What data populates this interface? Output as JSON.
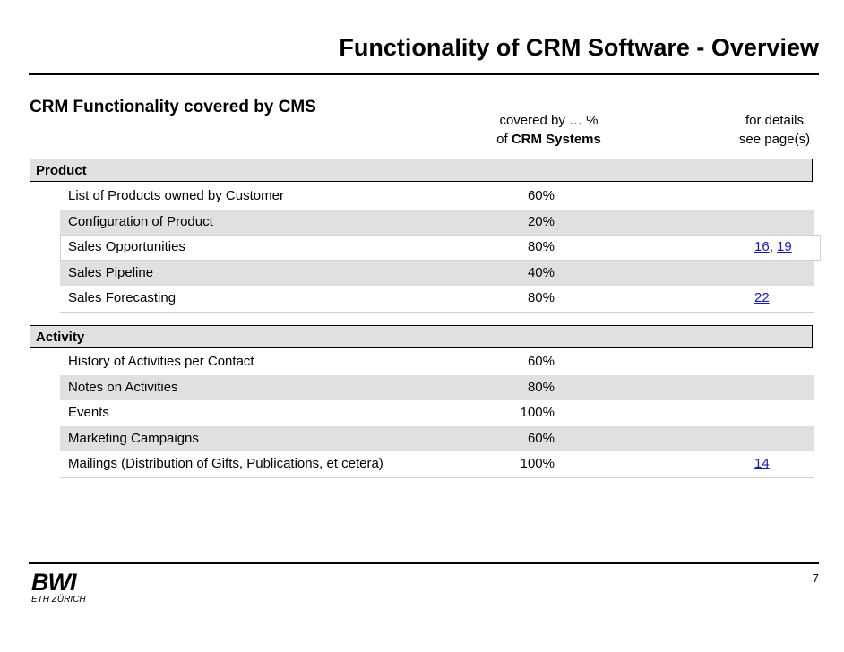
{
  "title": "Functionality of CRM Software - Overview",
  "subtitle": "CRM Functionality covered by CMS",
  "columns": {
    "percent_line1": "covered by … %",
    "percent_line2_prefix": "of ",
    "percent_line2_bold": "CRM Systems",
    "details_line1": "for details",
    "details_line2": "see page(s)"
  },
  "sections": [
    {
      "header": "Product",
      "rows": [
        {
          "label": "List of Products owned by Customer",
          "percent": "60%"
        },
        {
          "label": "Configuration of Product",
          "percent": "20%"
        },
        {
          "label": "Sales Opportunities",
          "percent": "80%",
          "link1": "16",
          "separator": ", ",
          "link2": "19"
        },
        {
          "label": "Sales Pipeline",
          "percent": "40%"
        },
        {
          "label": "Sales Forecasting",
          "percent": "80%",
          "link1": "22"
        }
      ]
    },
    {
      "header": "Activity",
      "rows": [
        {
          "label": "History of Activities per Contact",
          "percent": "60%"
        },
        {
          "label": "Notes on Activities",
          "percent": "80%"
        },
        {
          "label": "Events",
          "percent": "100%"
        },
        {
          "label": "Marketing Campaigns",
          "percent": "60%"
        },
        {
          "label": "Mailings (Distribution of Gifts, Publications, et cetera)",
          "percent": "100%",
          "link1": "14"
        }
      ]
    }
  ],
  "footer": {
    "logo_text": "BWI",
    "logo_subtext": "ETH ZÜRICH",
    "page_number": "7"
  }
}
